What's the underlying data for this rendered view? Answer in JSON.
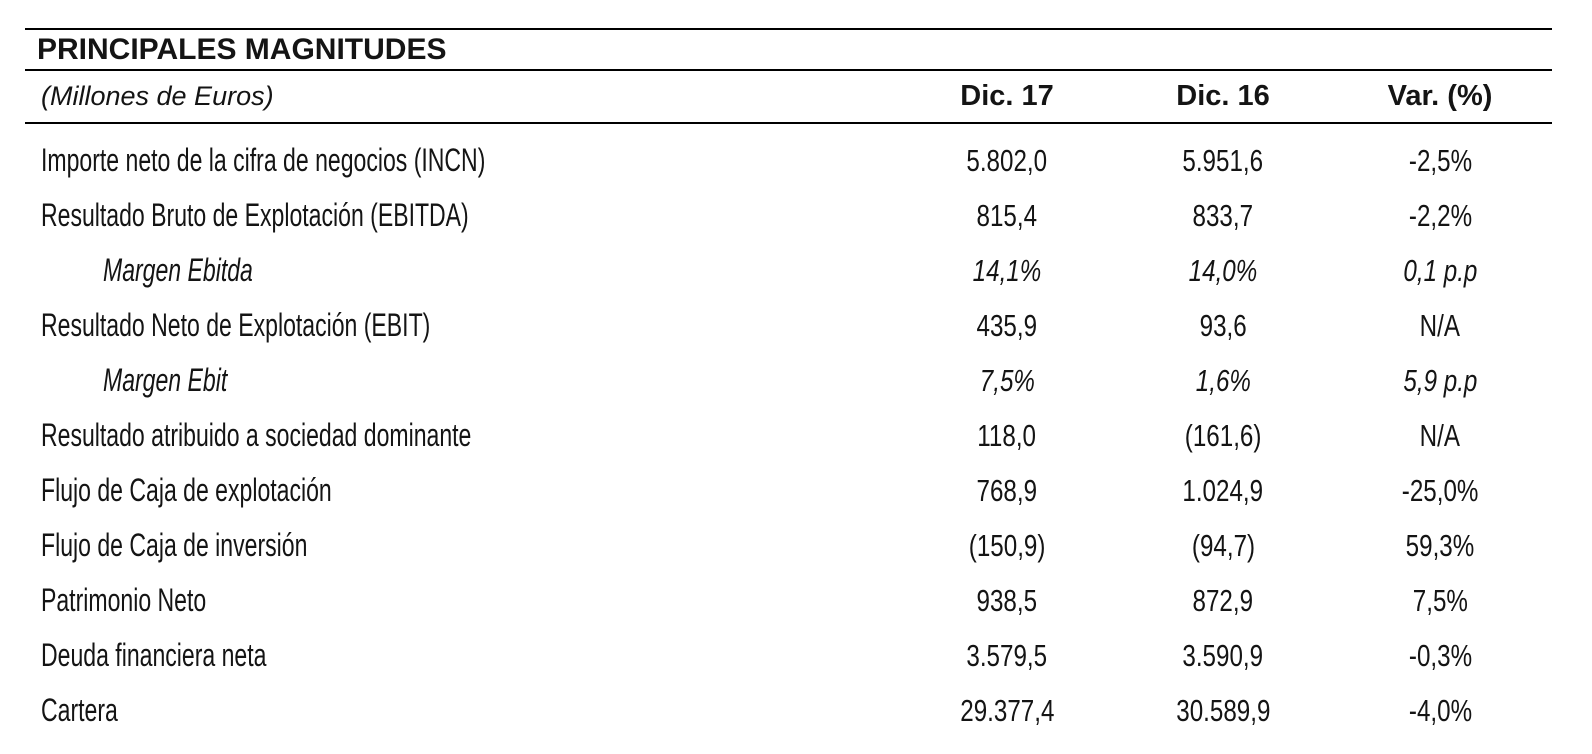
{
  "table": {
    "title": "PRINCIPALES MAGNITUDES",
    "unit_note": "(Millones de Euros)",
    "columns": [
      "Dic. 17",
      "Dic. 16",
      "Var. (%)"
    ],
    "rows": [
      {
        "label": "Importe neto de la cifra de negocios (INCN)",
        "italic": false,
        "values": [
          "5.802,0",
          "5.951,6",
          "-2,5%"
        ]
      },
      {
        "label": "Resultado Bruto de Explotación (EBITDA)",
        "italic": false,
        "values": [
          "815,4",
          "833,7",
          "-2,2%"
        ]
      },
      {
        "label": "Margen Ebitda",
        "italic": true,
        "values": [
          "14,1%",
          "14,0%",
          "0,1 p.p"
        ]
      },
      {
        "label": "Resultado Neto de Explotación (EBIT)",
        "italic": false,
        "values": [
          "435,9",
          "93,6",
          "N/A"
        ]
      },
      {
        "label": "Margen Ebit",
        "italic": true,
        "values": [
          "7,5%",
          "1,6%",
          "5,9 p.p"
        ]
      },
      {
        "label": "Resultado atribuido a sociedad dominante",
        "italic": false,
        "values": [
          "118,0",
          "(161,6)",
          "N/A"
        ]
      },
      {
        "label": "Flujo de Caja de explotación",
        "italic": false,
        "values": [
          "768,9",
          "1.024,9",
          "-25,0%"
        ]
      },
      {
        "label": "Flujo de Caja de inversión",
        "italic": false,
        "values": [
          "(150,9)",
          "(94,7)",
          "59,3%"
        ]
      },
      {
        "label": "Patrimonio Neto",
        "italic": false,
        "values": [
          "938,5",
          "872,9",
          "7,5%"
        ]
      },
      {
        "label": "Deuda financiera neta",
        "italic": false,
        "values": [
          "3.579,5",
          "3.590,9",
          "-0,3%"
        ]
      },
      {
        "label": "Cartera",
        "italic": false,
        "values": [
          "29.377,4",
          "30.589,9",
          "-4,0%"
        ]
      }
    ],
    "colors": {
      "text": "#141414",
      "rule": "#000000",
      "background": "#ffffff"
    }
  }
}
